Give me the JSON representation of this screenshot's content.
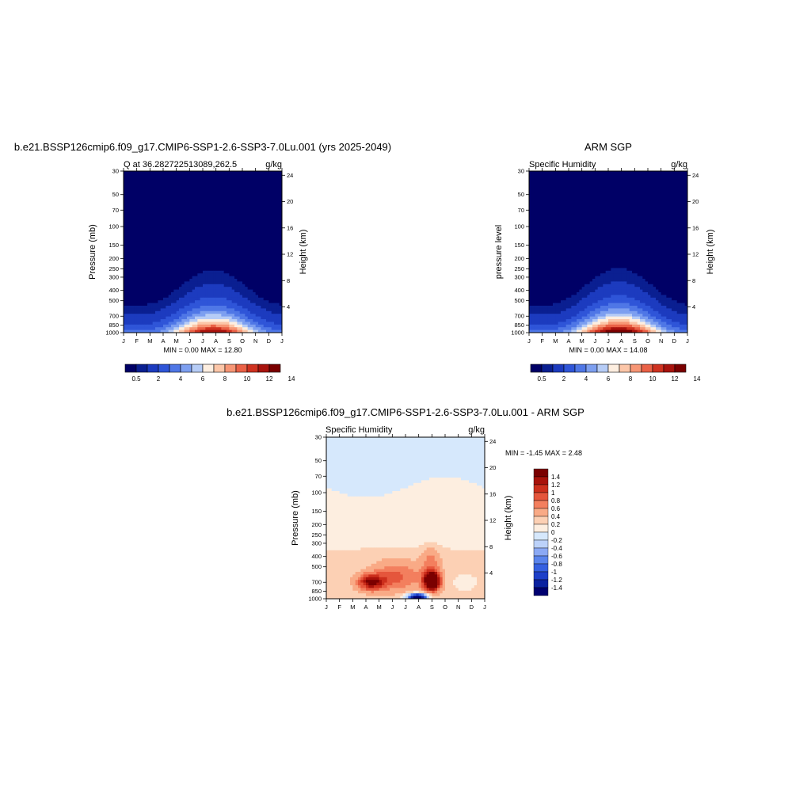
{
  "colors": {
    "levels12": [
      "#000066",
      "#0a1f91",
      "#1c3bbf",
      "#2f55d8",
      "#4f77e6",
      "#7d9ff0",
      "#b6ccf6",
      "#fdeee0",
      "#fcc6a8",
      "#f79675",
      "#ea6146",
      "#cf3220",
      "#a8130d",
      "#7a0000"
    ],
    "diff": [
      "#000070",
      "#0b22a0",
      "#1d3fc8",
      "#3560e0",
      "#5a84ec",
      "#8ba9f4",
      "#bcd2fa",
      "#d6e8fc",
      "#fdeee0",
      "#fcd0b4",
      "#f9aa86",
      "#f37f5e",
      "#e5563c",
      "#cc2f1c",
      "#a8120a",
      "#7a0000"
    ]
  },
  "chart_data": [
    {
      "type": "heatmap",
      "title": "b.e21.BSSP126cmip6.f09_g17.CMIP6-SSP1-2.6-SSP3-7.0Lu.001 (yrs 2025-2049)",
      "left_label": "Q at 36.282722513089,262.5",
      "right_label": "g/kg",
      "ylabel": "Pressure (mb)",
      "ylabel_right": "Height (km)",
      "x_ticks": [
        "J",
        "F",
        "M",
        "A",
        "M",
        "J",
        "J",
        "A",
        "S",
        "O",
        "N",
        "D",
        "J"
      ],
      "y_ticks": [
        "30",
        "50",
        "70",
        "100",
        "150",
        "200",
        "250",
        "300",
        "400",
        "500",
        "700",
        "850",
        "1000"
      ],
      "y_ticks_right": [
        "24",
        "20",
        "16",
        "12",
        "8",
        "4"
      ],
      "stats": "MIN =   0.00 MAX =  12.80",
      "colorbar_labels": [
        "0.5",
        "2",
        "4",
        "6",
        "8",
        "10",
        "12",
        "14"
      ],
      "min": 0.0,
      "max": 12.8
    },
    {
      "type": "heatmap",
      "title": "ARM SGP",
      "left_label": "Specific Humidity",
      "right_label": "g/kg",
      "ylabel": "pressure level",
      "ylabel_right": "Height (km)",
      "x_ticks": [
        "J",
        "F",
        "M",
        "A",
        "M",
        "J",
        "J",
        "A",
        "S",
        "O",
        "N",
        "D",
        "J"
      ],
      "y_ticks": [
        "30",
        "50",
        "70",
        "100",
        "150",
        "200",
        "250",
        "300",
        "400",
        "500",
        "700",
        "850",
        "1000"
      ],
      "y_ticks_right": [
        "24",
        "20",
        "16",
        "12",
        "8",
        "4"
      ],
      "stats": "MIN =   0.00 MAX =  14.08",
      "colorbar_labels": [
        "0.5",
        "2",
        "4",
        "6",
        "8",
        "10",
        "12",
        "14"
      ],
      "min": 0.0,
      "max": 14.08
    },
    {
      "type": "heatmap",
      "title": "b.e21.BSSP126cmip6.f09_g17.CMIP6-SSP1-2.6-SSP3-7.0Lu.001 - ARM SGP",
      "left_label": "Specific Humidity",
      "right_label": "g/kg",
      "ylabel": "Pressure (mb)",
      "ylabel_right": "Height (km)",
      "x_ticks": [
        "J",
        "F",
        "M",
        "A",
        "M",
        "J",
        "J",
        "A",
        "S",
        "O",
        "N",
        "D",
        "J"
      ],
      "y_ticks": [
        "30",
        "50",
        "70",
        "100",
        "150",
        "200",
        "250",
        "300",
        "400",
        "500",
        "700",
        "850",
        "1000"
      ],
      "y_ticks_right": [
        "24",
        "20",
        "16",
        "12",
        "8",
        "4"
      ],
      "stats": "MIN =  -1.45 MAX =   2.48",
      "colorbar_labels": [
        "1.4",
        "1.2",
        "1",
        "0.8",
        "0.6",
        "0.4",
        "0.2",
        "0",
        "-0.2",
        "-0.4",
        "-0.6",
        "-0.8",
        "-1",
        "-1.2",
        "-1.4"
      ],
      "min": -1.45,
      "max": 2.48
    }
  ]
}
